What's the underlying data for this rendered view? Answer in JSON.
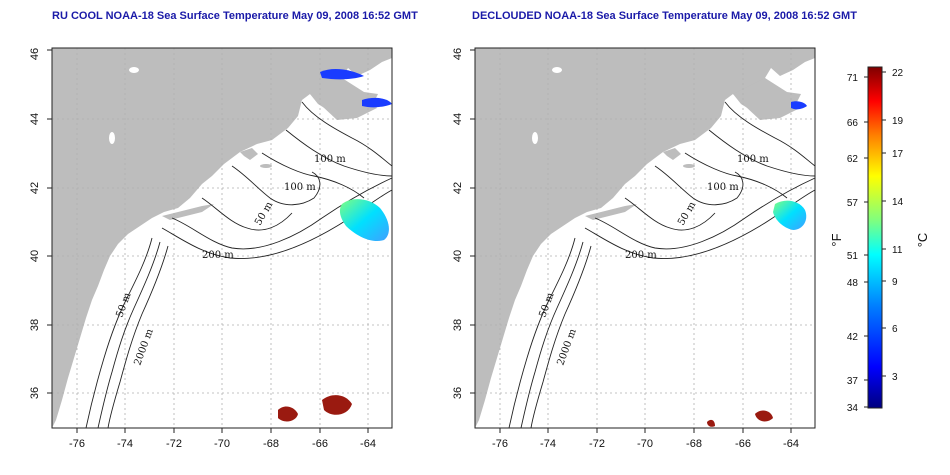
{
  "panels": [
    {
      "id": "left",
      "title": "RU COOL NOAA-18 Sea Surface Temperature May 09, 2008 16:52 GMT",
      "contour_labels": [
        "100 m",
        "100 m",
        "50 m",
        "200 m",
        "50 m",
        "2000 m"
      ]
    },
    {
      "id": "right",
      "title": "DECLOUDED NOAA-18 Sea Surface Temperature May 09, 2008 16:52 GMT",
      "contour_labels": [
        "100 m",
        "100 m",
        "50 m",
        "200 m",
        "50 m",
        "2000 m"
      ]
    }
  ],
  "axes": {
    "lon_ticks": [
      "-76",
      "-74",
      "-72",
      "-70",
      "-68",
      "-66",
      "-64"
    ],
    "lat_ticks": [
      "36",
      "38",
      "40",
      "42",
      "44",
      "46"
    ]
  },
  "colorbar": {
    "fahrenheit_ticks": [
      "71",
      "66",
      "62",
      "57",
      "51",
      "48",
      "42",
      "37",
      "34"
    ],
    "celsius_ticks": [
      "22",
      "19",
      "17",
      "14",
      "11",
      "9",
      "6",
      "3"
    ],
    "unit_f": "°F",
    "unit_c": "°C",
    "colors": [
      "#00007f",
      "#0000ff",
      "#007fff",
      "#00ffff",
      "#7fff7f",
      "#ffff00",
      "#ff7f00",
      "#ff0000",
      "#7f0000"
    ]
  },
  "colors": {
    "title": "#1a1aa8",
    "land": "#bdbdbd",
    "ocean": "#ffffff",
    "warm_patch": "#9a1a10",
    "grid": "#b0b0b0"
  }
}
